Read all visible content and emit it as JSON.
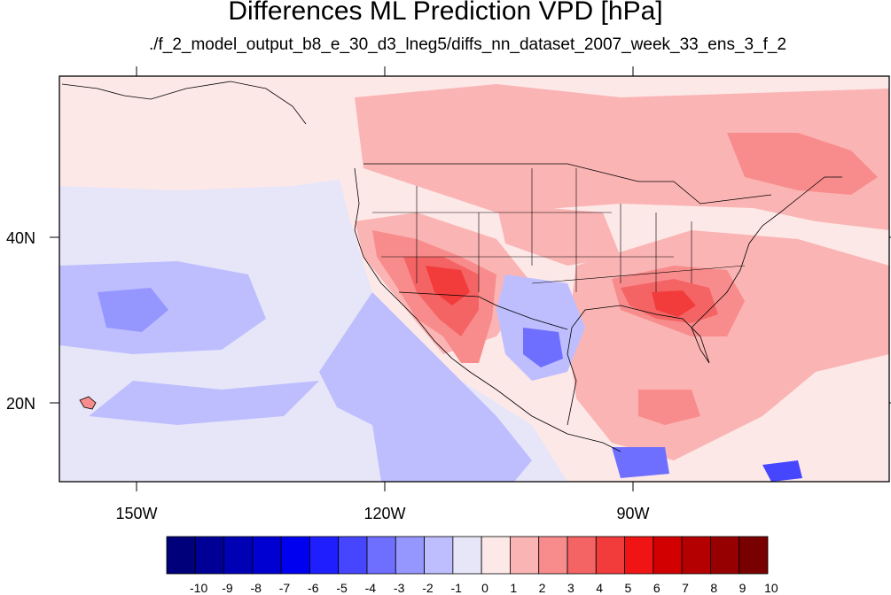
{
  "title": "Differences ML Prediction VPD [hPa]",
  "subtitle": "./f_2_model_output_b8_e_30_d3_lneg5/diffs_nn_dataset_2007_week_33_ens_3_f_2",
  "axes": {
    "lon_ticks": [
      {
        "label": "150W"
      },
      {
        "label": "120W"
      },
      {
        "label": "90W"
      }
    ],
    "lat_ticks": [
      {
        "label": "40N"
      },
      {
        "label": "20N"
      }
    ]
  },
  "colorbar": {
    "labels": [
      "-10",
      "-9",
      "-8",
      "-7",
      "-6",
      "-5",
      "-4",
      "-3",
      "-2",
      "-1",
      "0",
      "1",
      "2",
      "3",
      "4",
      "5",
      "6",
      "7",
      "8",
      "9",
      "10"
    ],
    "colors": [
      "#00007a",
      "#000096",
      "#0000b4",
      "#0000d2",
      "#0000f0",
      "#1e1eff",
      "#4646ff",
      "#6e6eff",
      "#9696ff",
      "#bebeff",
      "#e6e6f8",
      "#fde8e8",
      "#fbb4b4",
      "#f88c8c",
      "#f56464",
      "#f23c3c",
      "#f01414",
      "#d20000",
      "#b40000",
      "#960000",
      "#780000"
    ]
  }
}
